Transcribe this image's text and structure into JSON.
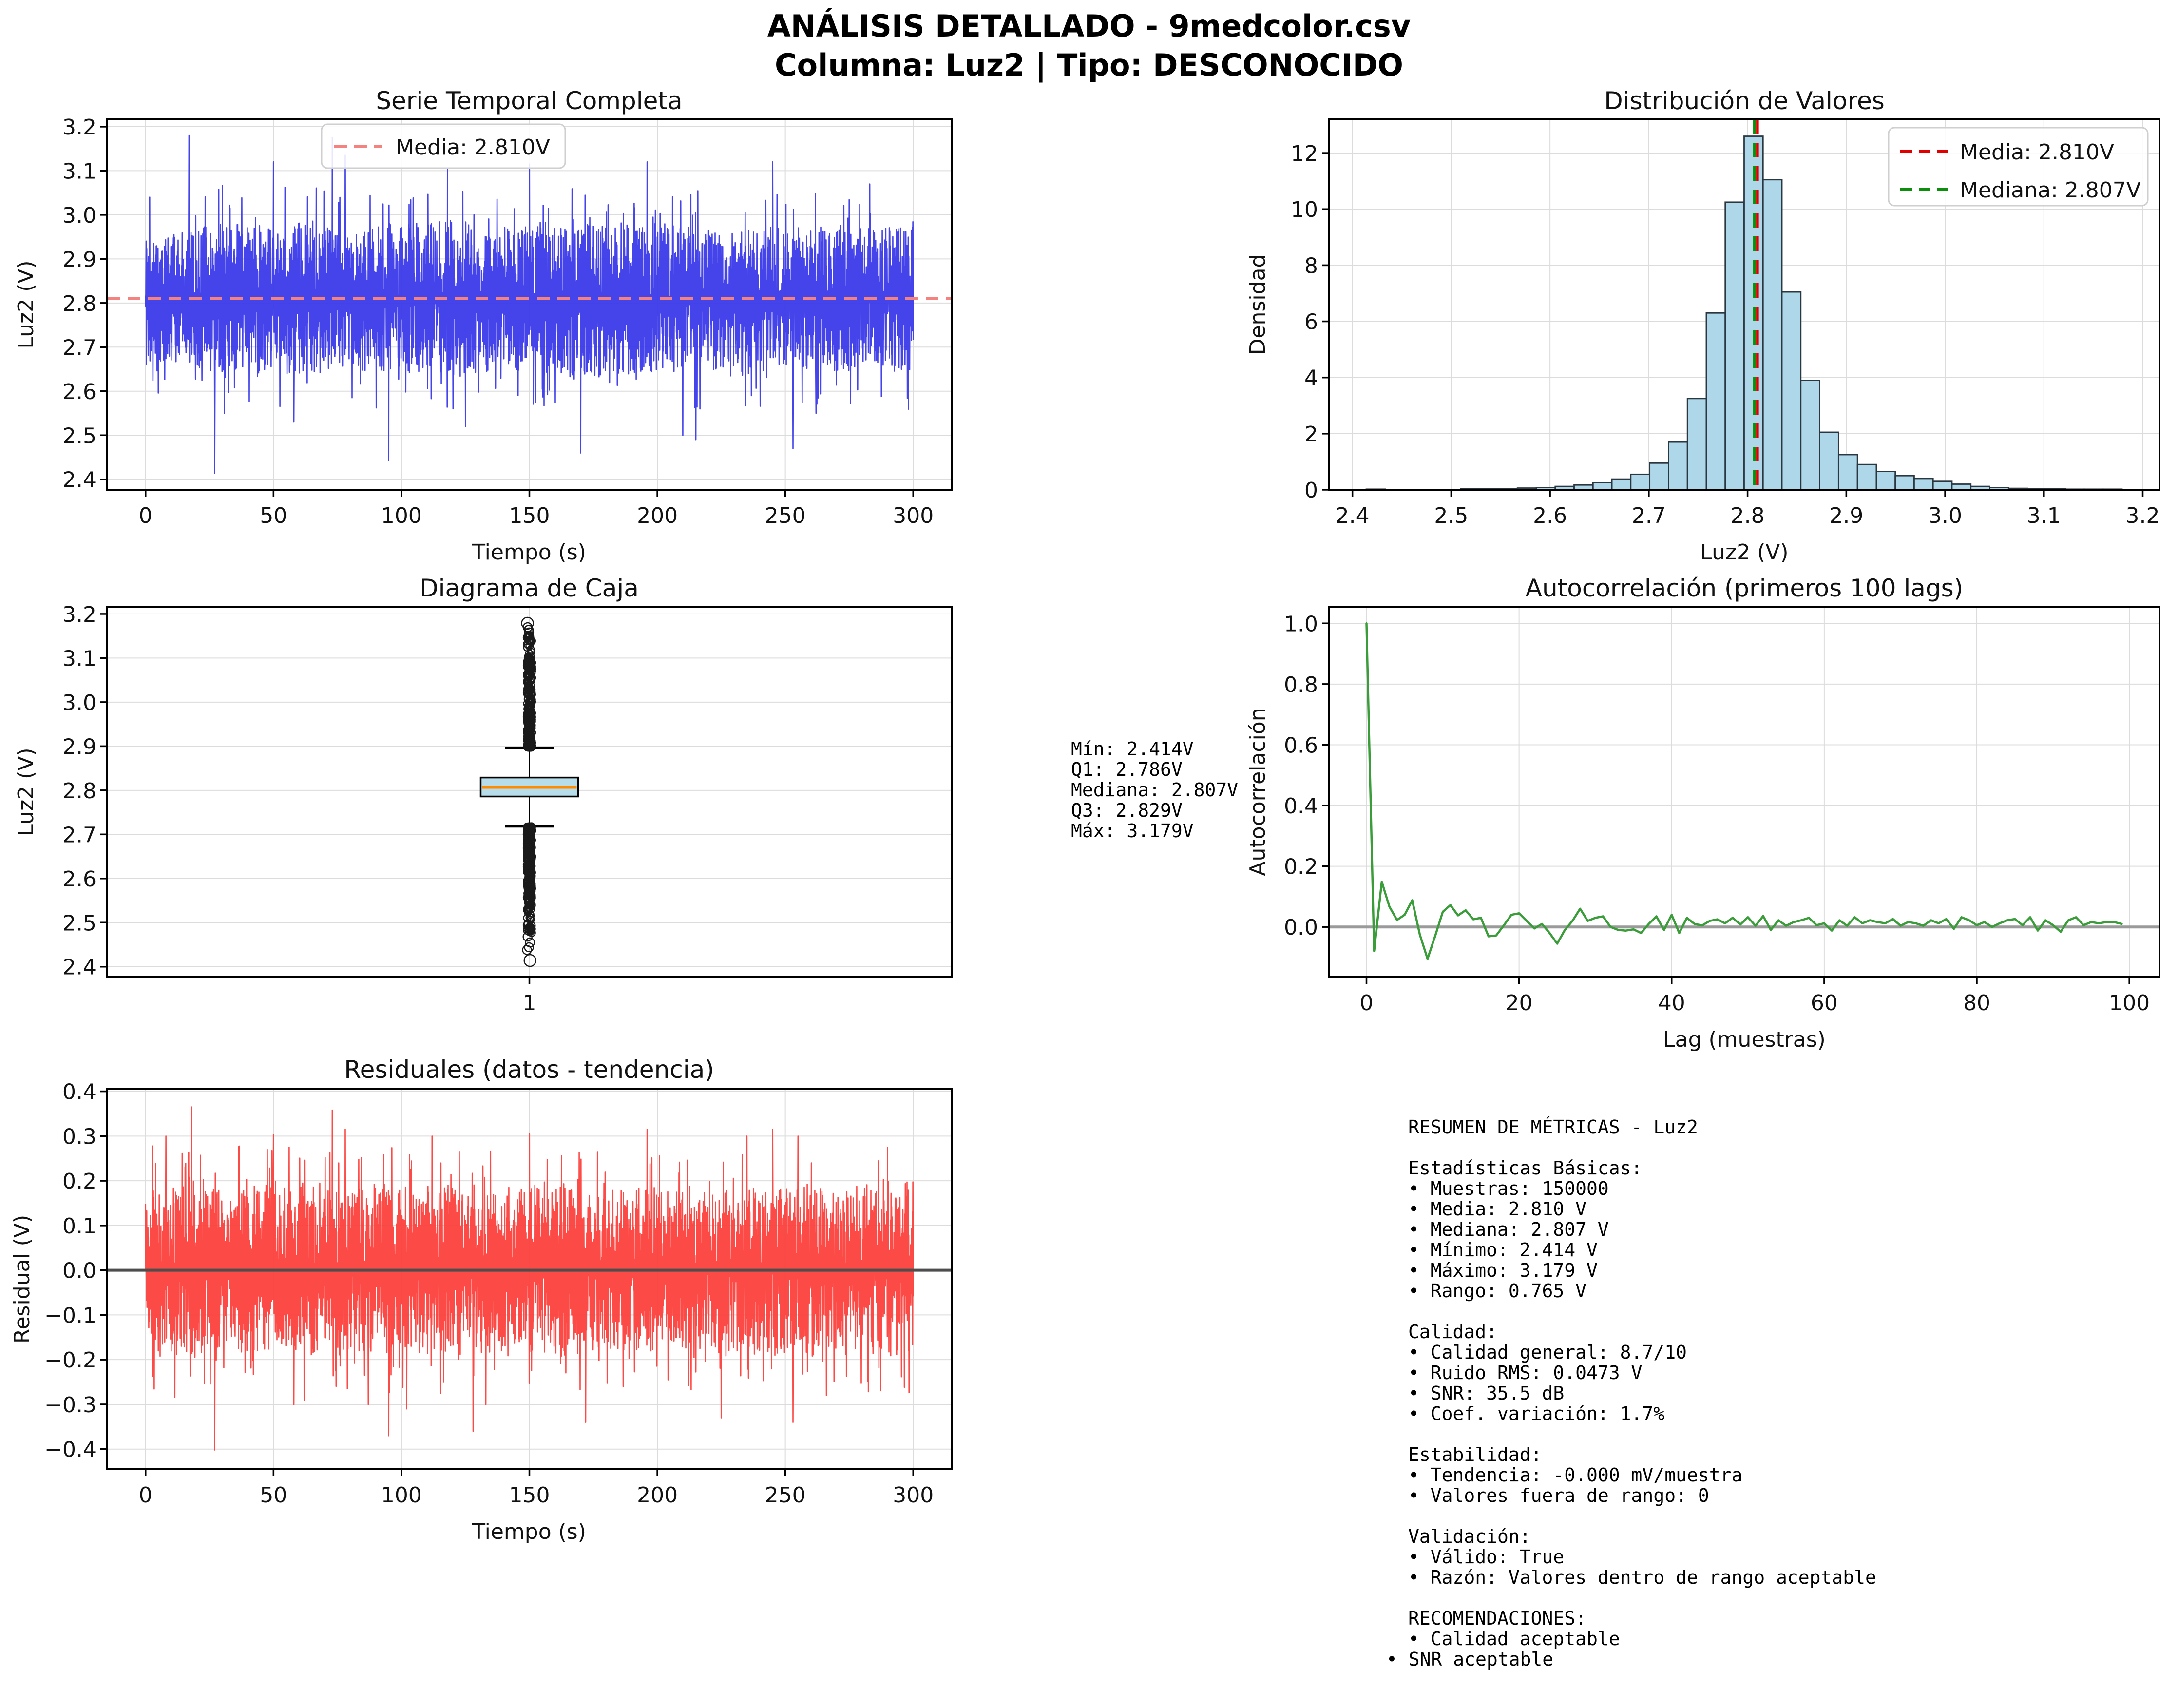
{
  "figure": {
    "title_line1": "ANÁLISIS DETALLADO - 9medcolor.csv",
    "title_line2": "Columna: Luz2 | Tipo: DESCONOCIDO"
  },
  "chart_data": [
    {
      "name": "serie_temporal",
      "type": "line",
      "title": "Serie Temporal Completa",
      "xlabel": "Tiempo (s)",
      "ylabel": "Luz2 (V)",
      "line_color": "#3434e8",
      "xticks": {
        "values": [
          0,
          50,
          100,
          150,
          200,
          250,
          300
        ],
        "labels": [
          "0",
          "50",
          "100",
          "150",
          "200",
          "250",
          "300"
        ]
      },
      "yticks": {
        "values": [
          2.4,
          2.5,
          2.6,
          2.7,
          2.8,
          2.9,
          3.0,
          3.1,
          3.2
        ],
        "labels": [
          "2.4",
          "2.5",
          "2.6",
          "2.7",
          "2.8",
          "2.9",
          "3.0",
          "3.1",
          "3.2"
        ]
      },
      "mean_line": {
        "label": "Media: 2.810V",
        "value": 2.81,
        "color": "#f4827f"
      },
      "signal": {
        "n_samples": 150000,
        "duration_s": 300,
        "mean": 2.81,
        "std": 0.047,
        "min": 2.414,
        "max": 3.179,
        "dense_band_halfwidth": 0.165,
        "peaks": [
          [
            17,
            3.18
          ],
          [
            50,
            3.12
          ],
          [
            73,
            3.175
          ],
          [
            78,
            3.135
          ],
          [
            118,
            3.105
          ],
          [
            150,
            3.115
          ],
          [
            196,
            3.12
          ],
          [
            245,
            3.12
          ],
          [
            283,
            3.07
          ],
          [
            27,
            2.414
          ],
          [
            58,
            2.53
          ],
          [
            95,
            2.444
          ],
          [
            125,
            2.52
          ],
          [
            170,
            2.46
          ],
          [
            210,
            2.5
          ],
          [
            215,
            2.49
          ],
          [
            253,
            2.47
          ],
          [
            262,
            2.55
          ]
        ]
      }
    },
    {
      "name": "distribucion",
      "type": "bar",
      "title": "Distribución de Valores",
      "xlabel": "Luz2 (V)",
      "ylabel": "Densidad",
      "bar_color": "#aed8ea",
      "edge_color": "#2b3740",
      "bins_start": 2.414,
      "bin_width": 0.019125,
      "densities": [
        0.02,
        0,
        0,
        0,
        0,
        0.04,
        0.03,
        0.04,
        0.06,
        0.08,
        0.12,
        0.17,
        0.25,
        0.38,
        0.55,
        0.95,
        1.7,
        3.25,
        6.3,
        10.25,
        12.6,
        11.05,
        7.05,
        3.9,
        2.05,
        1.25,
        0.9,
        0.65,
        0.5,
        0.4,
        0.3,
        0.2,
        0.12,
        0.08,
        0.05,
        0.04,
        0.03,
        0.02,
        0.02,
        0.02
      ],
      "xticks": {
        "values": [
          2.4,
          2.5,
          2.6,
          2.7,
          2.8,
          2.9,
          3.0,
          3.1,
          3.2
        ],
        "labels": [
          "2.4",
          "2.5",
          "2.6",
          "2.7",
          "2.8",
          "2.9",
          "3.0",
          "3.1",
          "3.2"
        ]
      },
      "yticks": {
        "values": [
          0,
          2,
          4,
          6,
          8,
          10,
          12
        ],
        "labels": [
          "0",
          "2",
          "4",
          "6",
          "8",
          "10",
          "12"
        ]
      },
      "mean_line": {
        "label": "Media: 2.810V",
        "value": 2.81,
        "color": "#e00000"
      },
      "median_line": {
        "label": "Mediana: 2.807V",
        "value": 2.807,
        "color": "#0d8f0d"
      }
    },
    {
      "name": "diagrama_caja",
      "type": "box",
      "title": "Diagrama de Caja",
      "ylabel": "Luz2 (V)",
      "box_color": "#b7dcea",
      "median_color": "#ff8c00",
      "stats": {
        "min": 2.414,
        "q1": 2.786,
        "median": 2.807,
        "q3": 2.829,
        "max": 3.179,
        "whisker_low": 2.718,
        "whisker_high": 2.896
      },
      "outliers": {
        "upper_dense_range": [
          2.897,
          3.102
        ],
        "upper_sparse_range": [
          3.102,
          3.155
        ],
        "upper_distinct": [
          3.158,
          3.164,
          3.17,
          3.179
        ],
        "lower_dense_range": [
          2.523,
          2.718
        ],
        "lower_sparse_range": [
          2.473,
          2.523
        ],
        "lower_distinct": [
          2.468,
          2.455,
          2.444,
          2.438,
          2.414
        ]
      },
      "xticks": {
        "values": [
          1
        ],
        "labels": [
          "1"
        ]
      },
      "yticks": {
        "values": [
          2.4,
          2.5,
          2.6,
          2.7,
          2.8,
          2.9,
          3.0,
          3.1,
          3.2
        ],
        "labels": [
          "2.4",
          "2.5",
          "2.6",
          "2.7",
          "2.8",
          "2.9",
          "3.0",
          "3.1",
          "3.2"
        ]
      }
    },
    {
      "name": "autocorrelacion",
      "type": "line",
      "title": "Autocorrelación (primeros 100 lags)",
      "xlabel": "Lag (muestras)",
      "ylabel": "Autocorrelación",
      "line_color": "#3a9d3a",
      "xticks": {
        "values": [
          0,
          20,
          40,
          60,
          80,
          100
        ],
        "labels": [
          "0",
          "20",
          "40",
          "60",
          "80",
          "100"
        ]
      },
      "yticks": {
        "values": [
          0.0,
          0.2,
          0.4,
          0.6,
          0.8,
          1.0
        ],
        "labels": [
          "0.0",
          "0.2",
          "0.4",
          "0.6",
          "0.8",
          "1.0"
        ]
      },
      "values": [
        1.0,
        -0.079,
        0.149,
        0.067,
        0.023,
        0.04,
        0.088,
        -0.026,
        -0.105,
        -0.03,
        0.05,
        0.072,
        0.038,
        0.055,
        0.025,
        0.03,
        -0.031,
        -0.028,
        0.005,
        0.04,
        0.045,
        0.02,
        -0.005,
        0.01,
        -0.02,
        -0.055,
        -0.01,
        0.02,
        0.06,
        0.02,
        0.03,
        0.035,
        0.0,
        -0.01,
        -0.012,
        -0.008,
        -0.02,
        0.01,
        0.035,
        -0.01,
        0.04,
        -0.02,
        0.03,
        0.01,
        0.005,
        0.02,
        0.025,
        0.012,
        0.03,
        0.008,
        0.032,
        0.004,
        0.036,
        -0.01,
        0.022,
        0.004,
        0.016,
        0.022,
        0.03,
        0.006,
        0.012,
        -0.012,
        0.022,
        0.004,
        0.032,
        0.012,
        0.022,
        0.016,
        0.012,
        0.026,
        0.004,
        0.016,
        0.012,
        0.004,
        0.022,
        0.012,
        0.026,
        -0.006,
        0.032,
        0.022,
        0.006,
        0.016,
        0.0,
        0.012,
        0.022,
        0.026,
        0.006,
        0.032,
        -0.012,
        0.022,
        0.006,
        -0.016,
        0.022,
        0.032,
        0.006,
        0.016,
        0.012,
        0.016,
        0.016,
        0.01
      ]
    },
    {
      "name": "residuales",
      "type": "line",
      "title": "Residuales (datos - tendencia)",
      "xlabel": "Tiempo (s)",
      "ylabel": "Residual (V)",
      "line_color": "#fc3b36",
      "xticks": {
        "values": [
          0,
          50,
          100,
          150,
          200,
          250,
          300
        ],
        "labels": [
          "0",
          "50",
          "100",
          "150",
          "200",
          "250",
          "300"
        ]
      },
      "yticks": {
        "values": [
          -0.4,
          -0.3,
          -0.2,
          -0.1,
          0.0,
          0.1,
          0.2,
          0.3,
          0.4
        ],
        "labels": [
          "−0.4",
          "−0.3",
          "−0.2",
          "−0.1",
          "0.0",
          "0.1",
          "0.2",
          "0.3",
          "0.4"
        ]
      },
      "signal": {
        "mean": 0.0,
        "dense_band_halfwidth": 0.185,
        "peaks": [
          [
            8,
            0.3
          ],
          [
            18,
            0.365
          ],
          [
            50,
            0.303
          ],
          [
            73,
            0.358
          ],
          [
            78,
            0.315
          ],
          [
            112,
            0.3
          ],
          [
            150,
            0.305
          ],
          [
            196,
            0.315
          ],
          [
            235,
            0.3
          ],
          [
            245,
            0.315
          ],
          [
            255,
            0.3
          ],
          [
            290,
            0.275
          ],
          [
            27,
            -0.402
          ],
          [
            58,
            -0.3
          ],
          [
            62,
            -0.29
          ],
          [
            87,
            -0.3
          ],
          [
            95,
            -0.37
          ],
          [
            102,
            -0.31
          ],
          [
            128,
            -0.36
          ],
          [
            133,
            -0.3
          ],
          [
            172,
            -0.34
          ],
          [
            225,
            -0.33
          ],
          [
            253,
            -0.34
          ]
        ]
      }
    }
  ],
  "box_stats": {
    "lines": [
      "Mín: 2.414V",
      "Q1: 2.786V",
      "Mediana: 2.807V",
      "Q3: 2.829V",
      "Máx: 3.179V"
    ]
  },
  "metrics": {
    "lines": [
      "RESUMEN DE MÉTRICAS - Luz2",
      "",
      "Estadísticas Básicas:",
      "• Muestras: 150000",
      "• Media: 2.810 V",
      "• Mediana: 2.807 V",
      "• Mínimo: 2.414 V",
      "• Máximo: 3.179 V",
      "• Rango: 0.765 V",
      "",
      "Calidad:",
      "• Calidad general: 8.7/10",
      "• Ruido RMS: 0.0473 V",
      "• SNR: 35.5 dB",
      "• Coef. variación: 1.7%",
      "",
      "Estabilidad:",
      "• Tendencia: -0.000 mV/muestra",
      "• Valores fuera de rango: 0",
      "",
      "Validación:",
      "• Válido: True",
      "• Razón: Valores dentro de rango aceptable",
      "",
      "RECOMENDACIONES:",
      "• Calidad aceptable"
    ],
    "last_line": "• SNR aceptable"
  }
}
